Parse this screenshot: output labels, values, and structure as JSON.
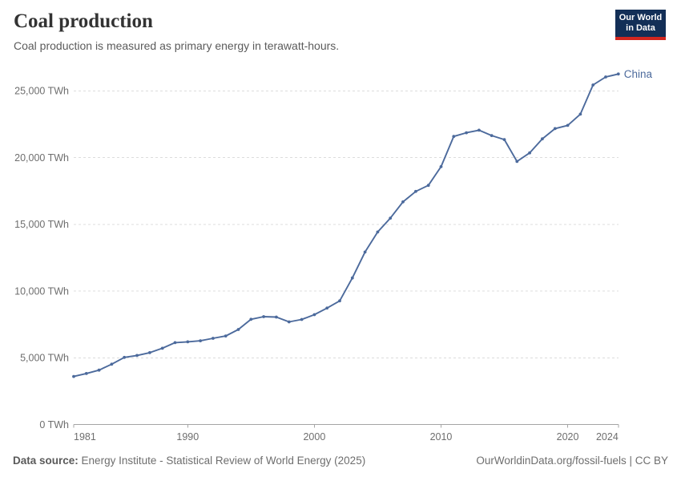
{
  "header": {
    "title": "Coal production",
    "subtitle": "Coal production is measured as primary energy in terawatt-hours."
  },
  "logo": {
    "line1": "Our World",
    "line2": "in Data",
    "bg_color": "#132f57",
    "accent_color": "#d2261f"
  },
  "chart_data": {
    "type": "line",
    "title": "Coal production",
    "unit": "TWh",
    "entity_label": "China",
    "line_color": "#4C6A9C",
    "grid": "horizontal-dashed",
    "legend_position": "end-of-line",
    "xlim": [
      1981,
      2024
    ],
    "ylim": [
      0,
      26500
    ],
    "x": [
      1981,
      1982,
      1983,
      1984,
      1985,
      1986,
      1987,
      1988,
      1989,
      1990,
      1991,
      1992,
      1993,
      1994,
      1995,
      1996,
      1997,
      1998,
      1999,
      2000,
      2001,
      2002,
      2003,
      2004,
      2005,
      2006,
      2007,
      2008,
      2009,
      2010,
      2011,
      2012,
      2013,
      2014,
      2015,
      2016,
      2017,
      2018,
      2019,
      2020,
      2021,
      2022,
      2023,
      2024
    ],
    "series": [
      {
        "name": "China",
        "values": [
          3600,
          3820,
          4070,
          4520,
          5030,
          5170,
          5380,
          5710,
          6130,
          6190,
          6270,
          6460,
          6630,
          7120,
          7880,
          8080,
          8050,
          7690,
          7870,
          8230,
          8720,
          9260,
          10980,
          12920,
          14420,
          15460,
          16680,
          17460,
          17920,
          19320,
          21580,
          21860,
          22050,
          21650,
          21350,
          19710,
          20350,
          21400,
          22170,
          22410,
          23250,
          25440,
          26040,
          26260
        ]
      }
    ],
    "yticks": [
      0,
      5000,
      10000,
      15000,
      20000,
      25000
    ],
    "ytick_labels": [
      "0 TWh",
      "5,000 TWh",
      "10,000 TWh",
      "15,000 TWh",
      "20,000 TWh",
      "25,000 TWh"
    ],
    "xticks": [
      1981,
      1990,
      2000,
      2010,
      2020,
      2024
    ],
    "xtick_labels": [
      "1981",
      "1990",
      "2000",
      "2010",
      "2020",
      "2024"
    ],
    "axis_color": "#a5a5a5",
    "grid_color": "#dcdcdc",
    "tick_label_color": "#6e6e6e"
  },
  "footer": {
    "source_label": "Data source:",
    "source_text": "Energy Institute - Statistical Review of World Energy (2025)",
    "rights_text": "OurWorldinData.org/fossil-fuels | CC BY"
  }
}
